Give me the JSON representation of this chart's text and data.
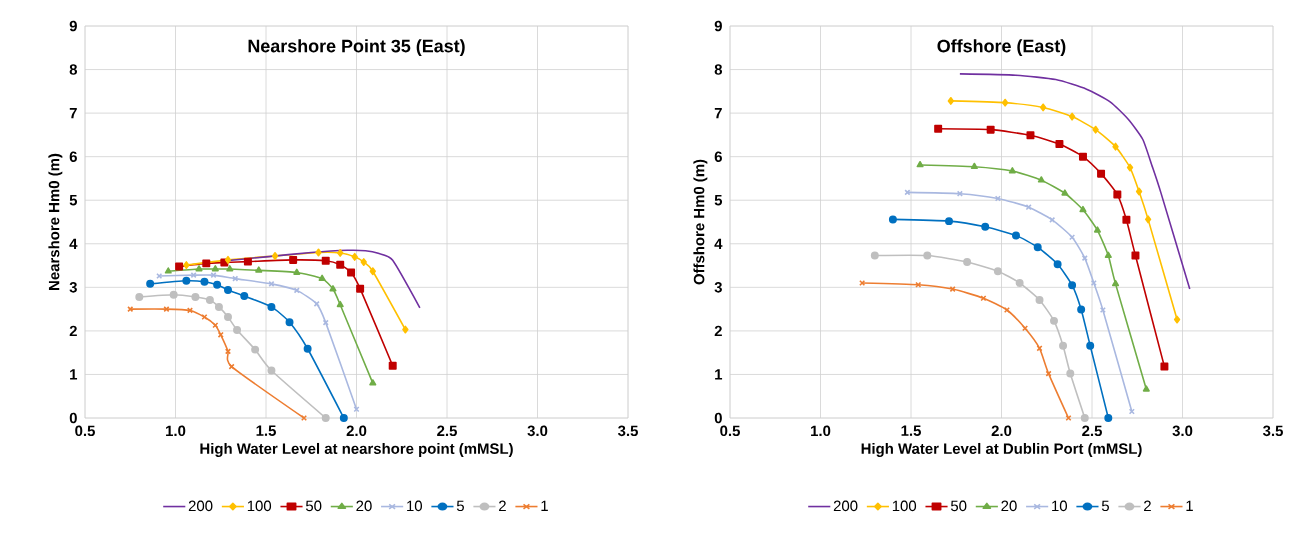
{
  "chart_data": [
    {
      "type": "line",
      "title": "Nearshore Point 35 (East)",
      "xlabel": "High Water Level at nearshore point (mMSL)",
      "ylabel": "Nearshore Hm0 (m)",
      "xlim": [
        0.5,
        3.5
      ],
      "ylim": [
        0,
        9
      ],
      "xticks": [
        0.5,
        {
          "value": 1,
          "label": "1.0"
        },
        1.5,
        {
          "value": 2,
          "label": "2.0"
        },
        2.5,
        {
          "value": 3,
          "label": "3.0"
        },
        3.5
      ],
      "yticks": [
        0,
        1,
        2,
        3,
        4,
        5,
        6,
        7,
        8,
        9
      ],
      "grid": true,
      "legend": "bottom",
      "series": [
        {
          "name": "200",
          "color": "#7030a0",
          "marker": "none",
          "x": [
            1.25,
            1.5,
            1.75,
            1.95,
            2.05,
            2.12,
            2.2,
            2.35
          ],
          "values": [
            3.6,
            3.7,
            3.8,
            3.85,
            3.84,
            3.78,
            3.62,
            2.53
          ]
        },
        {
          "name": "100",
          "color": "#ffc000",
          "marker": "diamond",
          "x": [
            1.06,
            1.29,
            1.55,
            1.79,
            1.91,
            1.99,
            2.04,
            2.09,
            2.27
          ],
          "values": [
            3.51,
            3.63,
            3.72,
            3.8,
            3.79,
            3.7,
            3.58,
            3.37,
            2.03
          ]
        },
        {
          "name": "50",
          "color": "#c00000",
          "marker": "square",
          "x": [
            1.02,
            1.17,
            1.27,
            1.4,
            1.65,
            1.83,
            1.91,
            1.97,
            2.02,
            2.2
          ],
          "values": [
            3.48,
            3.55,
            3.57,
            3.59,
            3.63,
            3.61,
            3.52,
            3.34,
            2.97,
            1.2
          ]
        },
        {
          "name": "20",
          "color": "#70ad47",
          "marker": "triangle",
          "x": [
            0.96,
            1.13,
            1.22,
            1.3,
            1.46,
            1.67,
            1.81,
            1.87,
            1.91,
            2.09
          ],
          "values": [
            3.37,
            3.42,
            3.42,
            3.42,
            3.39,
            3.34,
            3.2,
            2.96,
            2.6,
            0.8
          ]
        },
        {
          "name": "10",
          "color": "#a9b8e0",
          "marker": "cross",
          "x": [
            0.91,
            1.1,
            1.21,
            1.33,
            1.53,
            1.67,
            1.78,
            1.83,
            2.0
          ],
          "values": [
            3.26,
            3.28,
            3.28,
            3.2,
            3.08,
            2.93,
            2.62,
            2.19,
            0.2
          ]
        },
        {
          "name": "5",
          "color": "#0070c0",
          "marker": "circle",
          "x": [
            0.86,
            1.06,
            1.16,
            1.23,
            1.29,
            1.38,
            1.53,
            1.63,
            1.73,
            1.93
          ],
          "values": [
            3.08,
            3.15,
            3.13,
            3.06,
            2.94,
            2.8,
            2.55,
            2.2,
            1.59,
            0
          ]
        },
        {
          "name": "2",
          "color": "#bfbfbf",
          "marker": "circle",
          "x": [
            0.8,
            0.99,
            1.11,
            1.19,
            1.24,
            1.29,
            1.34,
            1.44,
            1.53,
            1.83
          ],
          "values": [
            2.78,
            2.83,
            2.78,
            2.71,
            2.55,
            2.32,
            2.02,
            1.57,
            1.09,
            0
          ]
        },
        {
          "name": "1",
          "color": "#ed7d31",
          "marker": "cross",
          "x": [
            0.75,
            0.95,
            1.08,
            1.16,
            1.22,
            1.25,
            1.29,
            1.31,
            1.71
          ],
          "values": [
            2.5,
            2.5,
            2.47,
            2.32,
            2.13,
            1.91,
            1.53,
            1.18,
            0
          ]
        }
      ]
    },
    {
      "type": "line",
      "title": "Offshore (East)",
      "xlabel": "High Water Level at Dublin Port (mMSL)",
      "ylabel": "Offshore Hm0 (m)",
      "xlim": [
        0.5,
        3.5
      ],
      "ylim": [
        0,
        9
      ],
      "xticks": [
        0.5,
        {
          "value": 1,
          "label": "1.0"
        },
        1.5,
        {
          "value": 2,
          "label": "2.0"
        },
        2.5,
        {
          "value": 3,
          "label": "3.0"
        },
        3.5
      ],
      "yticks": [
        0,
        1,
        2,
        3,
        4,
        5,
        6,
        7,
        8,
        9
      ],
      "grid": true,
      "legend": "bottom",
      "series": [
        {
          "name": "200",
          "color": "#7030a0",
          "marker": "none",
          "x": [
            1.77,
            2.08,
            2.3,
            2.47,
            2.6,
            2.7,
            2.78,
            2.83,
            2.88,
            3.04
          ],
          "values": [
            7.9,
            7.87,
            7.77,
            7.55,
            7.26,
            6.86,
            6.4,
            5.81,
            5.18,
            2.96
          ]
        },
        {
          "name": "100",
          "color": "#ffc000",
          "marker": "diamond",
          "x": [
            1.72,
            2.02,
            2.23,
            2.39,
            2.52,
            2.63,
            2.71,
            2.76,
            2.81,
            2.97
          ],
          "values": [
            7.28,
            7.24,
            7.13,
            6.92,
            6.62,
            6.23,
            5.75,
            5.2,
            4.56,
            2.26
          ]
        },
        {
          "name": "50",
          "color": "#c00000",
          "marker": "square",
          "x": [
            1.65,
            1.94,
            2.16,
            2.32,
            2.45,
            2.55,
            2.64,
            2.69,
            2.74,
            2.9
          ],
          "values": [
            6.64,
            6.62,
            6.49,
            6.29,
            6.0,
            5.61,
            5.13,
            4.55,
            3.73,
            1.18
          ]
        },
        {
          "name": "20",
          "color": "#70ad47",
          "marker": "triangle",
          "x": [
            1.55,
            1.85,
            2.06,
            2.22,
            2.35,
            2.45,
            2.53,
            2.59,
            2.63,
            2.8
          ],
          "values": [
            5.81,
            5.77,
            5.67,
            5.46,
            5.16,
            4.78,
            4.31,
            3.73,
            3.08,
            0.66
          ]
        },
        {
          "name": "10",
          "color": "#a9b8e0",
          "marker": "cross",
          "x": [
            1.48,
            1.77,
            1.98,
            2.15,
            2.28,
            2.39,
            2.46,
            2.51,
            2.56,
            2.72
          ],
          "values": [
            5.18,
            5.15,
            5.04,
            4.84,
            4.55,
            4.15,
            3.67,
            3.1,
            2.48,
            0.15
          ]
        },
        {
          "name": "5",
          "color": "#0070c0",
          "marker": "circle",
          "x": [
            1.4,
            1.71,
            1.91,
            2.08,
            2.2,
            2.31,
            2.39,
            2.44,
            2.49,
            2.59
          ],
          "values": [
            4.56,
            4.52,
            4.39,
            4.19,
            3.92,
            3.53,
            3.05,
            2.49,
            1.66,
            0
          ]
        },
        {
          "name": "2",
          "color": "#bfbfbf",
          "marker": "circle",
          "x": [
            1.3,
            1.59,
            1.81,
            1.98,
            2.1,
            2.21,
            2.29,
            2.34,
            2.38,
            2.46
          ],
          "values": [
            3.73,
            3.73,
            3.58,
            3.37,
            3.1,
            2.71,
            2.23,
            1.66,
            1.02,
            0
          ]
        },
        {
          "name": "1",
          "color": "#ed7d31",
          "marker": "cross",
          "x": [
            1.23,
            1.54,
            1.73,
            1.9,
            2.03,
            2.13,
            2.21,
            2.26,
            2.37
          ],
          "values": [
            3.1,
            3.06,
            2.96,
            2.75,
            2.48,
            2.06,
            1.6,
            1.02,
            0
          ]
        }
      ]
    }
  ]
}
